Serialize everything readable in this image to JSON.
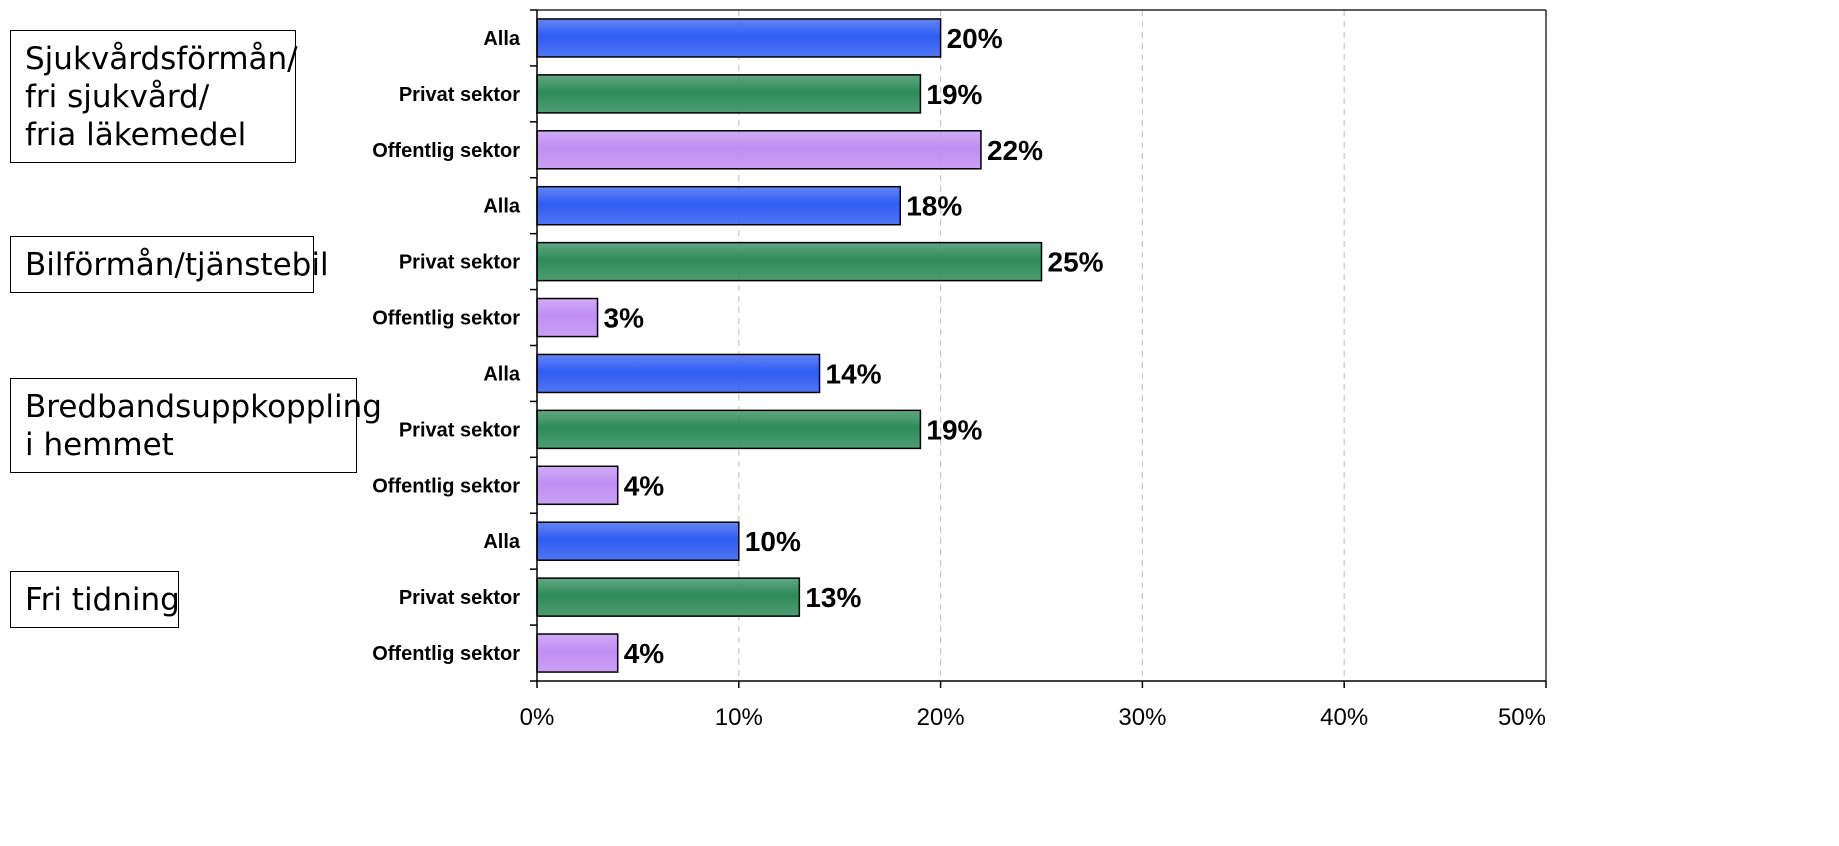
{
  "groups": [
    {
      "lines": [
        "Sjukvårdsförmån/",
        "fri sjukvård/",
        "fria läkemedel"
      ]
    },
    {
      "lines": [
        "Bilförmån/tjänstebil"
      ]
    },
    {
      "lines": [
        "Bredbandsuppkoppling",
        "i hemmet"
      ]
    },
    {
      "lines": [
        "Fri tidning"
      ]
    }
  ],
  "chart_data": {
    "type": "bar",
    "orientation": "horizontal",
    "categories": [
      "Alla",
      "Privat sektor",
      "Offentlig sektor",
      "Alla",
      "Privat sektor",
      "Offentlig sektor",
      "Alla",
      "Privat sektor",
      "Offentlig sektor",
      "Alla",
      "Privat sektor",
      "Offentlig sektor"
    ],
    "values": [
      20,
      19,
      22,
      18,
      25,
      3,
      14,
      19,
      4,
      10,
      13,
      4
    ],
    "value_labels": [
      "20%",
      "19%",
      "22%",
      "18%",
      "25%",
      "3%",
      "14%",
      "19%",
      "4%",
      "10%",
      "13%",
      "4%"
    ],
    "bar_colors": {
      "Alla": "#2f5df2",
      "Privat sektor": "#2e8b5a",
      "Offentlig sektor": "#c08ff2"
    },
    "xlim": [
      0,
      50
    ],
    "xticks": [
      0,
      10,
      20,
      30,
      40,
      50
    ],
    "xtick_labels": [
      "0%",
      "10%",
      "20%",
      "30%",
      "40%",
      "50%"
    ],
    "grid": "vertical dashed",
    "legend": "none"
  }
}
